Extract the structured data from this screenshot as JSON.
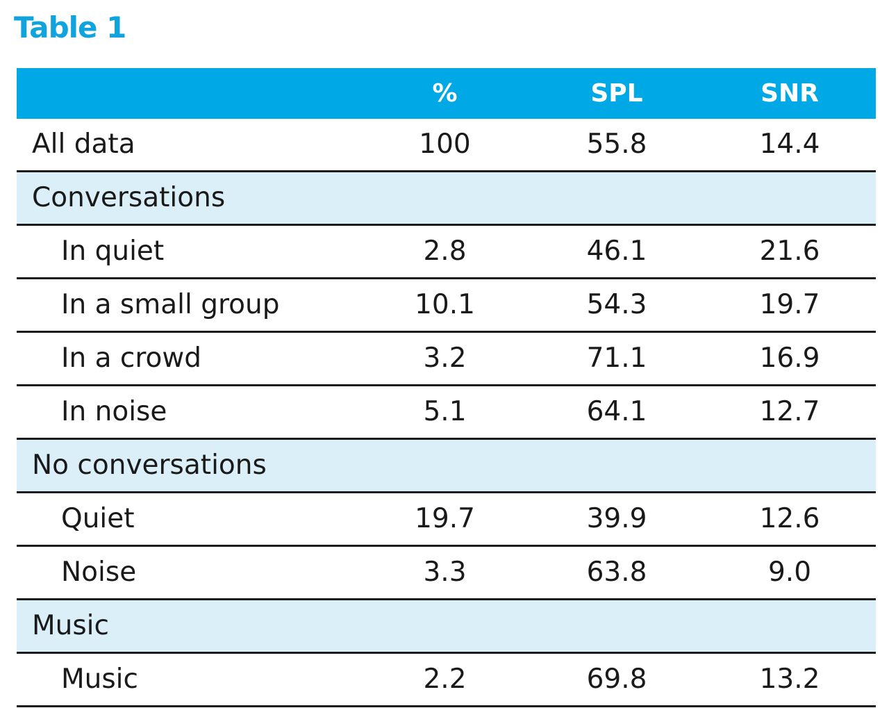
{
  "title": "Table 1",
  "table": {
    "headers": [
      "",
      "%",
      "SPL",
      "SNR"
    ],
    "rows": [
      {
        "type": "data",
        "indent": false,
        "label": "All data",
        "pct": "100",
        "spl": "55.8",
        "snr": "14.4"
      },
      {
        "type": "section",
        "label": "Conversations"
      },
      {
        "type": "data",
        "indent": true,
        "label": "In quiet",
        "pct": "2.8",
        "spl": "46.1",
        "snr": "21.6"
      },
      {
        "type": "data",
        "indent": true,
        "label": "In a small group",
        "pct": "10.1",
        "spl": "54.3",
        "snr": "19.7"
      },
      {
        "type": "data",
        "indent": true,
        "label": "In a crowd",
        "pct": "3.2",
        "spl": "71.1",
        "snr": "16.9"
      },
      {
        "type": "data",
        "indent": true,
        "label": "In noise",
        "pct": "5.1",
        "spl": "64.1",
        "snr": "12.7"
      },
      {
        "type": "section",
        "label": "No conversations"
      },
      {
        "type": "data",
        "indent": true,
        "label": "Quiet",
        "pct": "19.7",
        "spl": "39.9",
        "snr": "12.6"
      },
      {
        "type": "data",
        "indent": true,
        "label": "Noise",
        "pct": "3.3",
        "spl": "63.8",
        "snr": "9.0"
      },
      {
        "type": "section",
        "label": "Music"
      },
      {
        "type": "data",
        "indent": true,
        "label": "Music",
        "pct": "2.2",
        "spl": "69.8",
        "snr": "13.2"
      }
    ]
  },
  "colors": {
    "title": "#10a3dc",
    "header_bg": "#00a8e6",
    "section_bg": "#dbeff9"
  }
}
